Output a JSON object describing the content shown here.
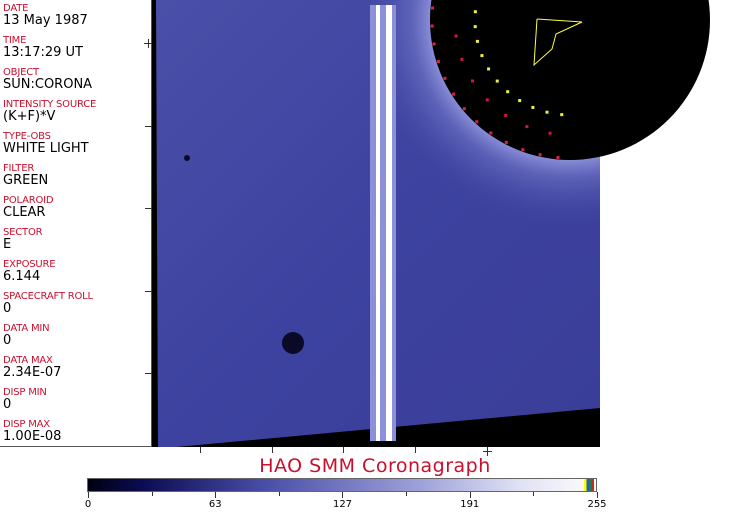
{
  "header_fields": [
    {
      "label": "DATE",
      "value": "13 May 1987"
    },
    {
      "label": "TIME",
      "value": "13:17:29 UT"
    },
    {
      "label": "OBJECT",
      "value": "SUN:CORONA"
    },
    {
      "label": "INTENSITY SOURCE",
      "value": "(K+F)*V"
    },
    {
      "label": "TYPE-OBS",
      "value": "WHITE LIGHT"
    },
    {
      "label": "FILTER",
      "value": "GREEN"
    },
    {
      "label": "POLAROID",
      "value": "CLEAR"
    },
    {
      "label": "SECTOR",
      "value": "E"
    },
    {
      "label": "EXPOSURE",
      "value": "6.144"
    },
    {
      "label": "SPACECRAFT ROLL",
      "value": "0"
    },
    {
      "label": "DATA MIN",
      "value": "0"
    },
    {
      "label": "DATA MAX",
      "value": "2.34E-07"
    },
    {
      "label": "DISP MIN",
      "value": "0"
    },
    {
      "label": "DISP MAX",
      "value": "1.00E-08"
    }
  ],
  "title": "HAO  SMM Coronagraph",
  "colorbar": {
    "ticks": [
      "0",
      "63",
      "127",
      "191",
      "255"
    ],
    "colors": {
      "low": "#000010",
      "mid": "#4a4ea8",
      "high": "#fafafa"
    }
  },
  "colors": {
    "label": "#c8102e",
    "image_background": "#000000",
    "image_tint": "#3a3f9a"
  }
}
